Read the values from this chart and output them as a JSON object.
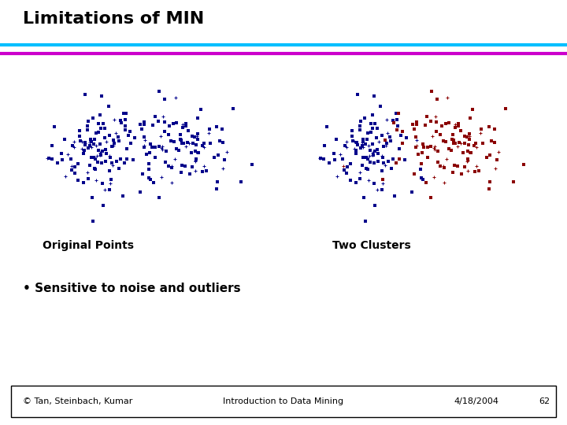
{
  "title": "Limitations of MIN",
  "title_fontsize": 16,
  "title_fontweight": "bold",
  "title_color": "#000000",
  "line1_color": "#00BFFF",
  "line2_color": "#CC00CC",
  "label_original": "Original Points",
  "label_clusters": "Two Clusters",
  "bullet_text": "• Sensitive to noise and outliers",
  "footer_left": "© Tan, Steinbach, Kumar",
  "footer_center": "Introduction to Data Mining",
  "footer_right": "4/18/2004",
  "footer_page": "62",
  "bg_color": "#FFFFFF",
  "point_color_blue": "#00008B",
  "point_color_red": "#8B0000"
}
